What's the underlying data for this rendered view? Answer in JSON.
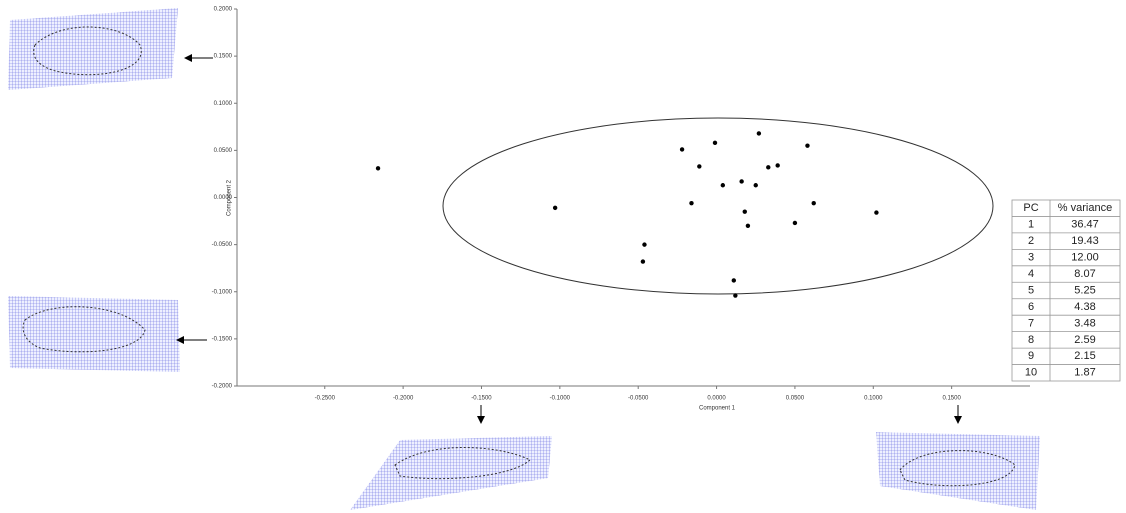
{
  "chart_data": {
    "type": "scatter",
    "x_label": "Component 1",
    "y_label": "Component 2",
    "x": [
      -0.216,
      -0.103,
      -0.022,
      -0.001,
      0.027,
      0.058,
      -0.011,
      0.033,
      0.039,
      0.004,
      0.016,
      0.025,
      -0.016,
      0.062,
      0.102,
      0.018,
      0.02,
      0.05,
      -0.046,
      -0.047,
      0.011,
      0.012
    ],
    "values": [
      0.031,
      -0.011,
      0.051,
      0.058,
      0.068,
      0.055,
      0.033,
      0.032,
      0.034,
      0.013,
      0.017,
      0.013,
      -0.006,
      -0.006,
      -0.016,
      -0.015,
      -0.03,
      -0.027,
      -0.05,
      -0.068,
      -0.088,
      -0.104
    ],
    "color": "#000000",
    "xlim": [
      -0.306,
      0.2
    ],
    "ylim": [
      -0.2,
      0.2
    ],
    "xticks": [
      {
        "value": -0.25,
        "label": "-0.2500"
      },
      {
        "value": -0.2,
        "label": "-0.2000"
      },
      {
        "value": -0.15,
        "label": "-0.1500"
      },
      {
        "value": -0.1,
        "label": "-0.1000"
      },
      {
        "value": -0.05,
        "label": "-0.0500"
      },
      {
        "value": 0,
        "label": "0.0000"
      },
      {
        "value": 0.05,
        "label": "0.0500"
      },
      {
        "value": 0.1,
        "label": "0.1000"
      },
      {
        "value": 0.15,
        "label": "0.1500"
      }
    ],
    "yticks": [
      {
        "value": 0.2,
        "label": "0.2000"
      },
      {
        "value": 0.15,
        "label": "0.1500"
      },
      {
        "value": 0.1,
        "label": "0.1000"
      },
      {
        "value": 0.05,
        "label": "0.0500"
      },
      {
        "value": 0,
        "label": "0.0000"
      },
      {
        "value": -0.05,
        "label": "-0.0500"
      },
      {
        "value": -0.1,
        "label": "-0.1000"
      },
      {
        "value": -0.15,
        "label": "-0.1500"
      },
      {
        "value": -0.2,
        "label": "-0.2000"
      }
    ]
  },
  "table": {
    "header": [
      "PC",
      "% variance"
    ],
    "rows": [
      [
        "1",
        "36.47"
      ],
      [
        "2",
        "19.43"
      ],
      [
        "3",
        "12.00"
      ],
      [
        "4",
        "8.07"
      ],
      [
        "5",
        "5.25"
      ],
      [
        "6",
        "4.38"
      ],
      [
        "7",
        "3.48"
      ],
      [
        "8",
        "2.59"
      ],
      [
        "9",
        "2.15"
      ],
      [
        "10",
        "1.87"
      ]
    ]
  }
}
